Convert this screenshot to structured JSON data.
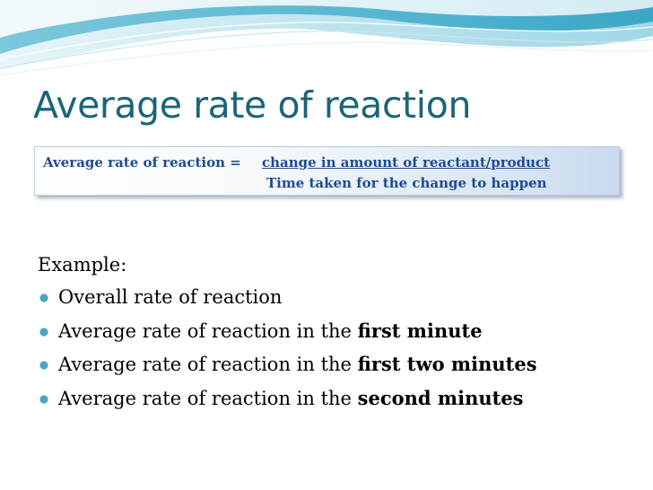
{
  "slide": {
    "title": "Average rate of reaction",
    "formula": {
      "label": "Average rate of reaction = ",
      "numerator": "change in amount of reactant/product",
      "denominator": "Time taken for the change to happen"
    },
    "example_label": "Example:",
    "bullets": [
      {
        "text": "Overall rate of reaction",
        "bold": ""
      },
      {
        "text": "Average rate of reaction in the ",
        "bold": "first minute"
      },
      {
        "text": "Average rate of reaction in the ",
        "bold": "first two minutes"
      },
      {
        "text": "Average rate of reaction in the ",
        "bold": "second minutes"
      }
    ]
  },
  "colors": {
    "title": "#1b6477",
    "formula_text": "#1f4c92",
    "bullet_marker": "#4ba5bf",
    "wave_light": "#d8eef4",
    "wave_mid": "#8fd0e2",
    "wave_dark": "#4cb3cf"
  },
  "icons": {
    "bullet": "circle-bullet-icon"
  }
}
